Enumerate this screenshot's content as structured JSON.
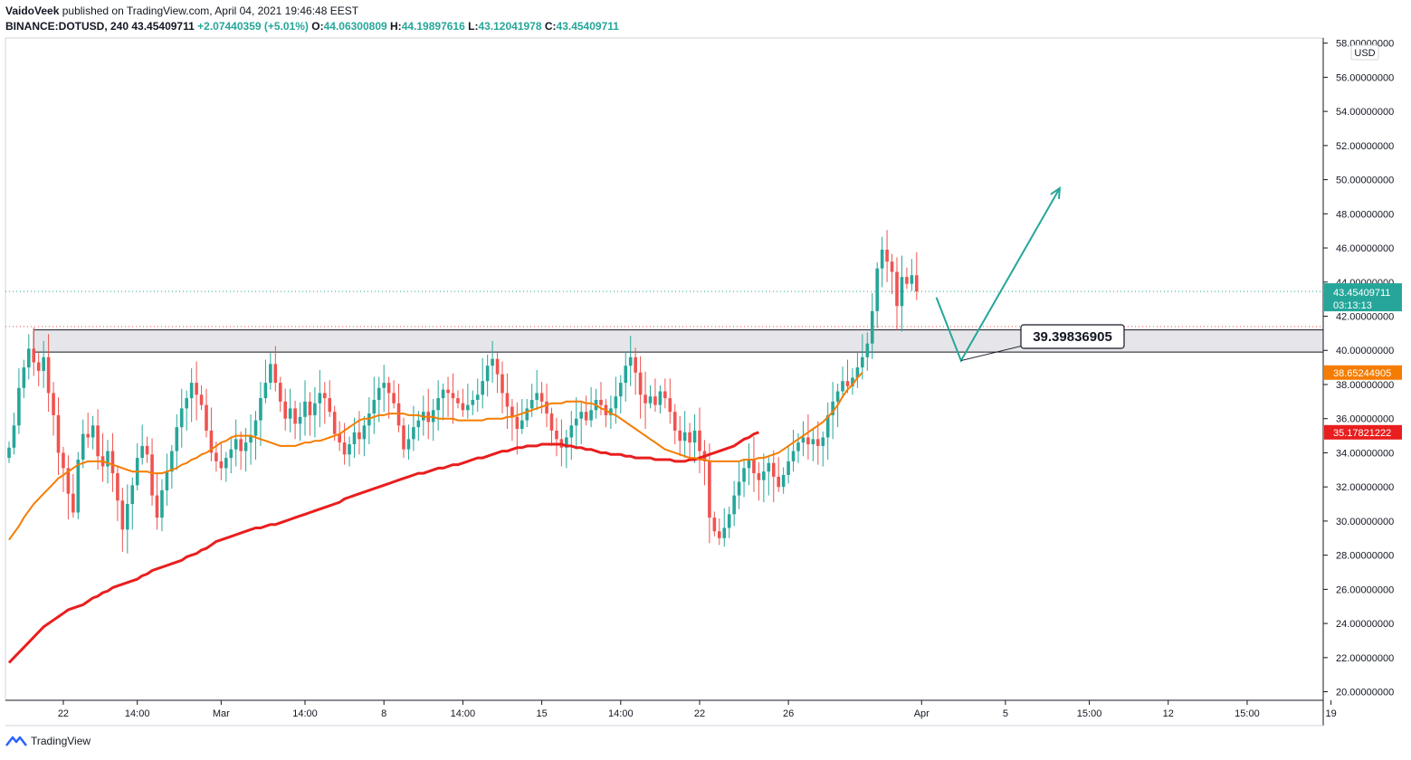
{
  "header": {
    "author": "VaidoVeek",
    "published": "published on TradingView.com, April 04, 2021 19:46:48 EEST",
    "symbol": "BINANCE:DOTUSD, 240",
    "price": "43.45409711",
    "change": "+2.07440359 (+5.01%)",
    "o_label": "O:",
    "o": "44.06300809",
    "h_label": "H:",
    "h": "44.19897616",
    "l_label": "L:",
    "l": "43.12041978",
    "c_label": "C:",
    "c": "43.45409711"
  },
  "footer": {
    "brand": "TradingView"
  },
  "colors": {
    "up": "#26a69a",
    "down": "#ef5350",
    "ma50": "#f57c00",
    "ma200": "#e91e1e",
    "arrow": "#26a69a"
  },
  "chart_data": {
    "type": "candlestick",
    "title": "BINANCE:DOTUSD, 240",
    "currency": "USD",
    "ylim": [
      19.5,
      58.3
    ],
    "y_ticks": [
      "58.00000000",
      "56.00000000",
      "54.00000000",
      "52.00000000",
      "50.00000000",
      "48.00000000",
      "46.00000000",
      "44.00000000",
      "42.00000000",
      "40.00000000",
      "38.00000000",
      "36.00000000",
      "34.00000000",
      "32.00000000",
      "30.00000000",
      "28.00000000",
      "26.00000000",
      "24.00000000",
      "22.00000000",
      "20.00000000"
    ],
    "y_tick_values": [
      58,
      56,
      54,
      52,
      50,
      48,
      46,
      44,
      42,
      40,
      38,
      36,
      34,
      32,
      30,
      28,
      26,
      24,
      22,
      20
    ],
    "x_ticks": [
      "22",
      "14:00",
      "Mar",
      "14:00",
      "8",
      "14:00",
      "15",
      "14:00",
      "22",
      "26",
      "Apr",
      "5",
      "15:00",
      "12",
      "15:00",
      "19"
    ],
    "x_tick_bars": [
      11,
      26,
      43,
      60,
      76,
      92,
      108,
      124,
      140,
      158,
      185,
      202,
      219,
      235,
      251,
      268
    ],
    "close_series": [
      34.3,
      35.6,
      37.8,
      39.0,
      40.1,
      39.3,
      38.8,
      39.6,
      37.5,
      36.2,
      34.0,
      33.1,
      31.6,
      30.5,
      33.6,
      35.1,
      34.9,
      35.6,
      33.8,
      33.2,
      34.1,
      32.8,
      31.2,
      29.5,
      31.0,
      32.1,
      33.7,
      34.4,
      33.9,
      31.5,
      30.2,
      31.8,
      32.9,
      34.1,
      35.5,
      36.6,
      37.2,
      38.1,
      37.4,
      36.8,
      35.3,
      34.0,
      33.5,
      33.1,
      33.7,
      34.2,
      34.8,
      34.1,
      34.6,
      35.0,
      35.9,
      37.2,
      38.1,
      39.2,
      38.1,
      37.0,
      36.0,
      36.6,
      35.7,
      36.1,
      37.0,
      36.2,
      36.9,
      37.5,
      37.2,
      36.4,
      35.1,
      34.6,
      33.9,
      34.5,
      35.2,
      34.8,
      35.6,
      36.3,
      37.1,
      37.8,
      38.1,
      37.5,
      36.9,
      35.6,
      34.2,
      34.8,
      35.5,
      35.9,
      36.4,
      35.8,
      36.5,
      37.2,
      37.7,
      37.5,
      37.2,
      36.9,
      36.5,
      36.8,
      37.1,
      37.4,
      38.2,
      39.1,
      39.5,
      38.6,
      37.5,
      36.7,
      36.1,
      35.4,
      35.9,
      36.6,
      37.1,
      37.5,
      37.0,
      36.3,
      35.3,
      34.8,
      34.3,
      34.9,
      35.6,
      36.0,
      36.4,
      35.9,
      36.5,
      37.1,
      36.8,
      36.2,
      36.6,
      37.3,
      38.1,
      39.1,
      39.6,
      38.7,
      37.4,
      36.9,
      37.3,
      36.8,
      37.6,
      37.2,
      36.4,
      35.3,
      34.7,
      35.2,
      34.6,
      35.3,
      34.1,
      33.5,
      30.2,
      29.4,
      29.0,
      29.6,
      30.4,
      31.5,
      32.3,
      33.1,
      33.6,
      32.8,
      32.4,
      32.9,
      33.4,
      32.6,
      32.0,
      32.7,
      33.5,
      34.1,
      34.6,
      34.9,
      34.5,
      34.8,
      34.4,
      34.9,
      36.2,
      37.0,
      37.6,
      38.2,
      37.9,
      38.4,
      39.0,
      39.6,
      40.4,
      42.3,
      44.8,
      45.9,
      45.2,
      44.6,
      42.6,
      44.3,
      43.9,
      44.4,
      43.45
    ],
    "ma50_series": [
      28.9,
      29.3,
      29.7,
      30.2,
      30.6,
      31.0,
      31.3,
      31.6,
      31.9,
      32.2,
      32.5,
      32.7,
      32.9,
      33.1,
      33.3,
      33.4,
      33.5,
      33.5,
      33.5,
      33.5,
      33.4,
      33.3,
      33.2,
      33.1,
      33.0,
      32.9,
      32.9,
      32.9,
      32.9,
      32.8,
      32.8,
      32.8,
      32.9,
      33.0,
      33.1,
      33.3,
      33.4,
      33.6,
      33.7,
      33.9,
      34.0,
      34.2,
      34.4,
      34.6,
      34.7,
      34.9,
      35.0,
      35.0,
      35.0,
      35.0,
      34.9,
      34.8,
      34.7,
      34.6,
      34.5,
      34.4,
      34.4,
      34.4,
      34.4,
      34.5,
      34.6,
      34.6,
      34.7,
      34.7,
      34.8,
      34.9,
      35.0,
      35.1,
      35.3,
      35.5,
      35.7,
      35.9,
      36.0,
      36.0,
      36.1,
      36.2,
      36.2,
      36.3,
      36.3,
      36.3,
      36.3,
      36.2,
      36.2,
      36.2,
      36.1,
      36.1,
      36.1,
      36.0,
      36.0,
      36.0,
      36.0,
      35.9,
      35.9,
      35.9,
      35.9,
      35.9,
      35.9,
      36.0,
      36.0,
      36.0,
      36.0,
      36.1,
      36.1,
      36.2,
      36.3,
      36.4,
      36.5,
      36.6,
      36.7,
      36.8,
      36.9,
      36.9,
      36.9,
      37.0,
      37.0,
      37.0,
      37.0,
      36.9,
      36.9,
      36.8,
      36.6,
      36.5,
      36.3,
      36.2,
      36.0,
      35.8,
      35.6,
      35.4,
      35.2,
      35.0,
      34.8,
      34.6,
      34.4,
      34.2,
      34.1,
      34.0,
      33.9,
      33.8,
      33.7,
      33.7,
      33.6,
      33.6,
      33.5,
      33.5,
      33.5,
      33.5,
      33.5,
      33.5,
      33.5,
      33.6,
      33.6,
      33.6,
      33.7,
      33.7,
      33.8,
      33.9,
      34.0,
      34.2,
      34.4,
      34.6,
      34.8,
      35.0,
      35.2,
      35.4,
      35.6,
      35.8,
      36.1,
      36.4,
      36.8,
      37.3,
      37.7,
      38.0,
      38.4,
      38.7
    ],
    "ma200_series": [
      21.7,
      22.0,
      22.3,
      22.6,
      22.9,
      23.2,
      23.5,
      23.8,
      24.0,
      24.2,
      24.4,
      24.6,
      24.8,
      24.9,
      25.0,
      25.1,
      25.3,
      25.5,
      25.6,
      25.8,
      25.9,
      26.1,
      26.2,
      26.3,
      26.4,
      26.5,
      26.6,
      26.8,
      26.9,
      27.1,
      27.2,
      27.3,
      27.4,
      27.5,
      27.6,
      27.7,
      27.9,
      28.0,
      28.1,
      28.3,
      28.4,
      28.6,
      28.8,
      28.9,
      29.0,
      29.1,
      29.2,
      29.3,
      29.4,
      29.5,
      29.6,
      29.6,
      29.7,
      29.8,
      29.8,
      29.9,
      30.0,
      30.1,
      30.2,
      30.3,
      30.4,
      30.5,
      30.6,
      30.7,
      30.8,
      30.9,
      31.0,
      31.1,
      31.3,
      31.4,
      31.5,
      31.6,
      31.7,
      31.8,
      31.9,
      32.0,
      32.1,
      32.2,
      32.3,
      32.4,
      32.5,
      32.6,
      32.7,
      32.8,
      32.8,
      32.9,
      33.0,
      33.1,
      33.1,
      33.2,
      33.3,
      33.3,
      33.4,
      33.5,
      33.6,
      33.7,
      33.7,
      33.8,
      33.9,
      34.0,
      34.1,
      34.1,
      34.2,
      34.3,
      34.3,
      34.4,
      34.4,
      34.4,
      34.5,
      34.5,
      34.5,
      34.5,
      34.5,
      34.4,
      34.4,
      34.3,
      34.3,
      34.2,
      34.2,
      34.1,
      34.0,
      34.0,
      33.9,
      33.9,
      33.9,
      33.8,
      33.8,
      33.7,
      33.7,
      33.7,
      33.7,
      33.6,
      33.6,
      33.6,
      33.6,
      33.5,
      33.5,
      33.5,
      33.6,
      33.6,
      33.7,
      33.8,
      33.9,
      34.0,
      34.1,
      34.2,
      34.3,
      34.4,
      34.6,
      34.8,
      34.9,
      35.1,
      35.2
    ],
    "support_zone": [
      39.9,
      41.2
    ],
    "current_price_line": 43.45409711,
    "dotted_red_level": 41.4,
    "projection_points": [
      [
        43.1,
        39.4
      ],
      [
        39.4,
        49.5
      ]
    ],
    "labels": {
      "currency": "USD",
      "last_price": "43.45409711",
      "countdown": "03:13:13",
      "ma50_value": "38.65244905",
      "ma200_value": "35.17821222",
      "target": "39.39836905"
    }
  }
}
